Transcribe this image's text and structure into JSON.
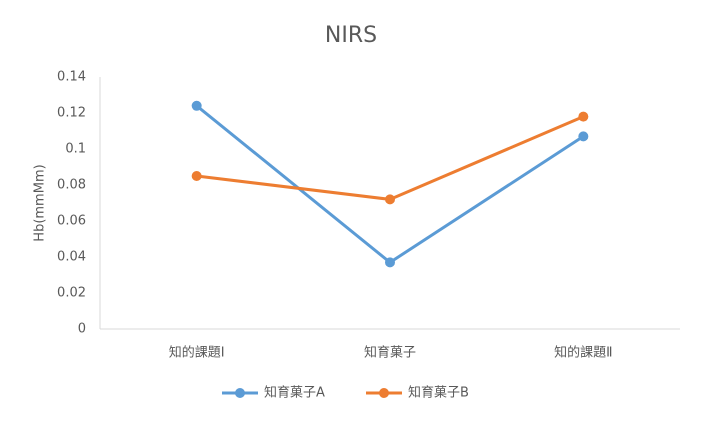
{
  "chart_data": {
    "type": "line",
    "title": "NIRS",
    "y_label": "Hb(mmMm)",
    "categories": [
      "知的課題Ⅰ",
      "知育菓子",
      "知的課題Ⅱ"
    ],
    "series": [
      {
        "name": "知育菓子A",
        "color": "#5b9bd5",
        "values": [
          0.124,
          0.037,
          0.107
        ]
      },
      {
        "name": "知育菓子B",
        "color": "#ed7d31",
        "values": [
          0.085,
          0.072,
          0.118
        ]
      }
    ],
    "ylim": [
      0,
      0.14
    ],
    "yticks": [
      0,
      0.02,
      0.04,
      0.06,
      0.08,
      0.1,
      0.12,
      0.14
    ],
    "grid": false,
    "legend": "bottom"
  }
}
